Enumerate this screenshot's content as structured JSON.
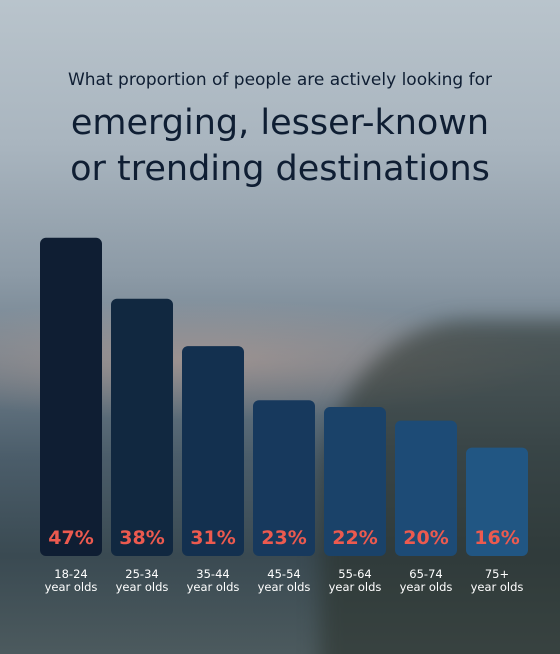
{
  "chart_data": {
    "type": "bar",
    "subtitle": "What proportion of people are actively looking for",
    "title": "emerging, lesser-known\nor trending destinations",
    "categories": [
      "18-24\nyear olds",
      "25-34\nyear olds",
      "35-44\nyear olds",
      "45-54\nyear olds",
      "55-64\nyear olds",
      "65-74\nyear olds",
      "75+\nyear olds"
    ],
    "values": [
      47,
      38,
      31,
      23,
      22,
      20,
      16
    ],
    "value_labels": [
      "47%",
      "38%",
      "31%",
      "23%",
      "22%",
      "20%",
      "16%"
    ],
    "colors": [
      "#0f1e33",
      "#112840",
      "#13304f",
      "#17395d",
      "#1a4269",
      "#1d4b76",
      "#215683"
    ],
    "value_label_color": "#ec5a4f"
  }
}
